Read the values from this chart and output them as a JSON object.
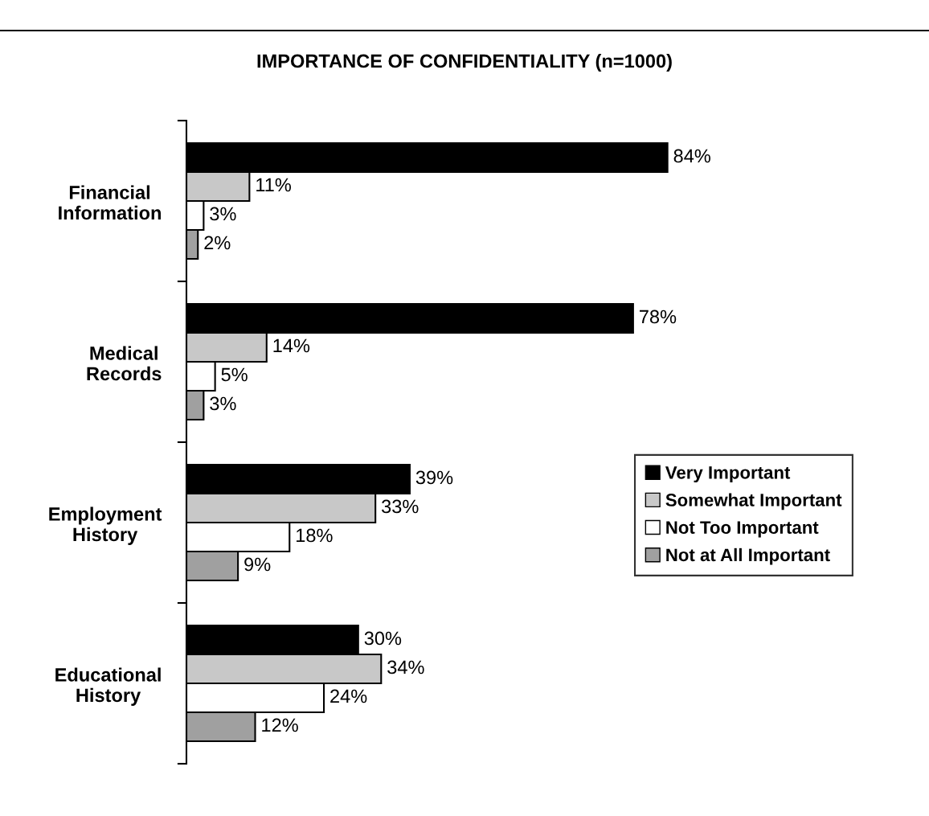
{
  "chart_data": {
    "type": "bar",
    "orientation": "horizontal",
    "title": "IMPORTANCE OF CONFIDENTIALITY (n=1000)",
    "categories": [
      "Financial\nInformation",
      "Medical\nRecords",
      "Employment\nHistory",
      "Educational\nHistory"
    ],
    "series": [
      {
        "name": "Very Important",
        "color": "#000000",
        "values": [
          84,
          78,
          39,
          30
        ],
        "value_labels": [
          "84%",
          "78%",
          "39%",
          "30%"
        ]
      },
      {
        "name": "Somewhat Important",
        "color": "#c8c8c8",
        "values": [
          11,
          14,
          33,
          34
        ],
        "value_labels": [
          "11%",
          "14%",
          "33%",
          "34%"
        ]
      },
      {
        "name": "Not Too Important",
        "color": "#ffffff",
        "values": [
          3,
          5,
          18,
          24
        ],
        "value_labels": [
          "3%",
          "5%",
          "18%",
          "24%"
        ]
      },
      {
        "name": "Not at All Important",
        "color": "#a0a0a0",
        "values": [
          2,
          3,
          9,
          12
        ],
        "value_labels": [
          "2%",
          "3%",
          "9%",
          "12%"
        ]
      }
    ],
    "legend": "bottom right",
    "grid": false
  }
}
